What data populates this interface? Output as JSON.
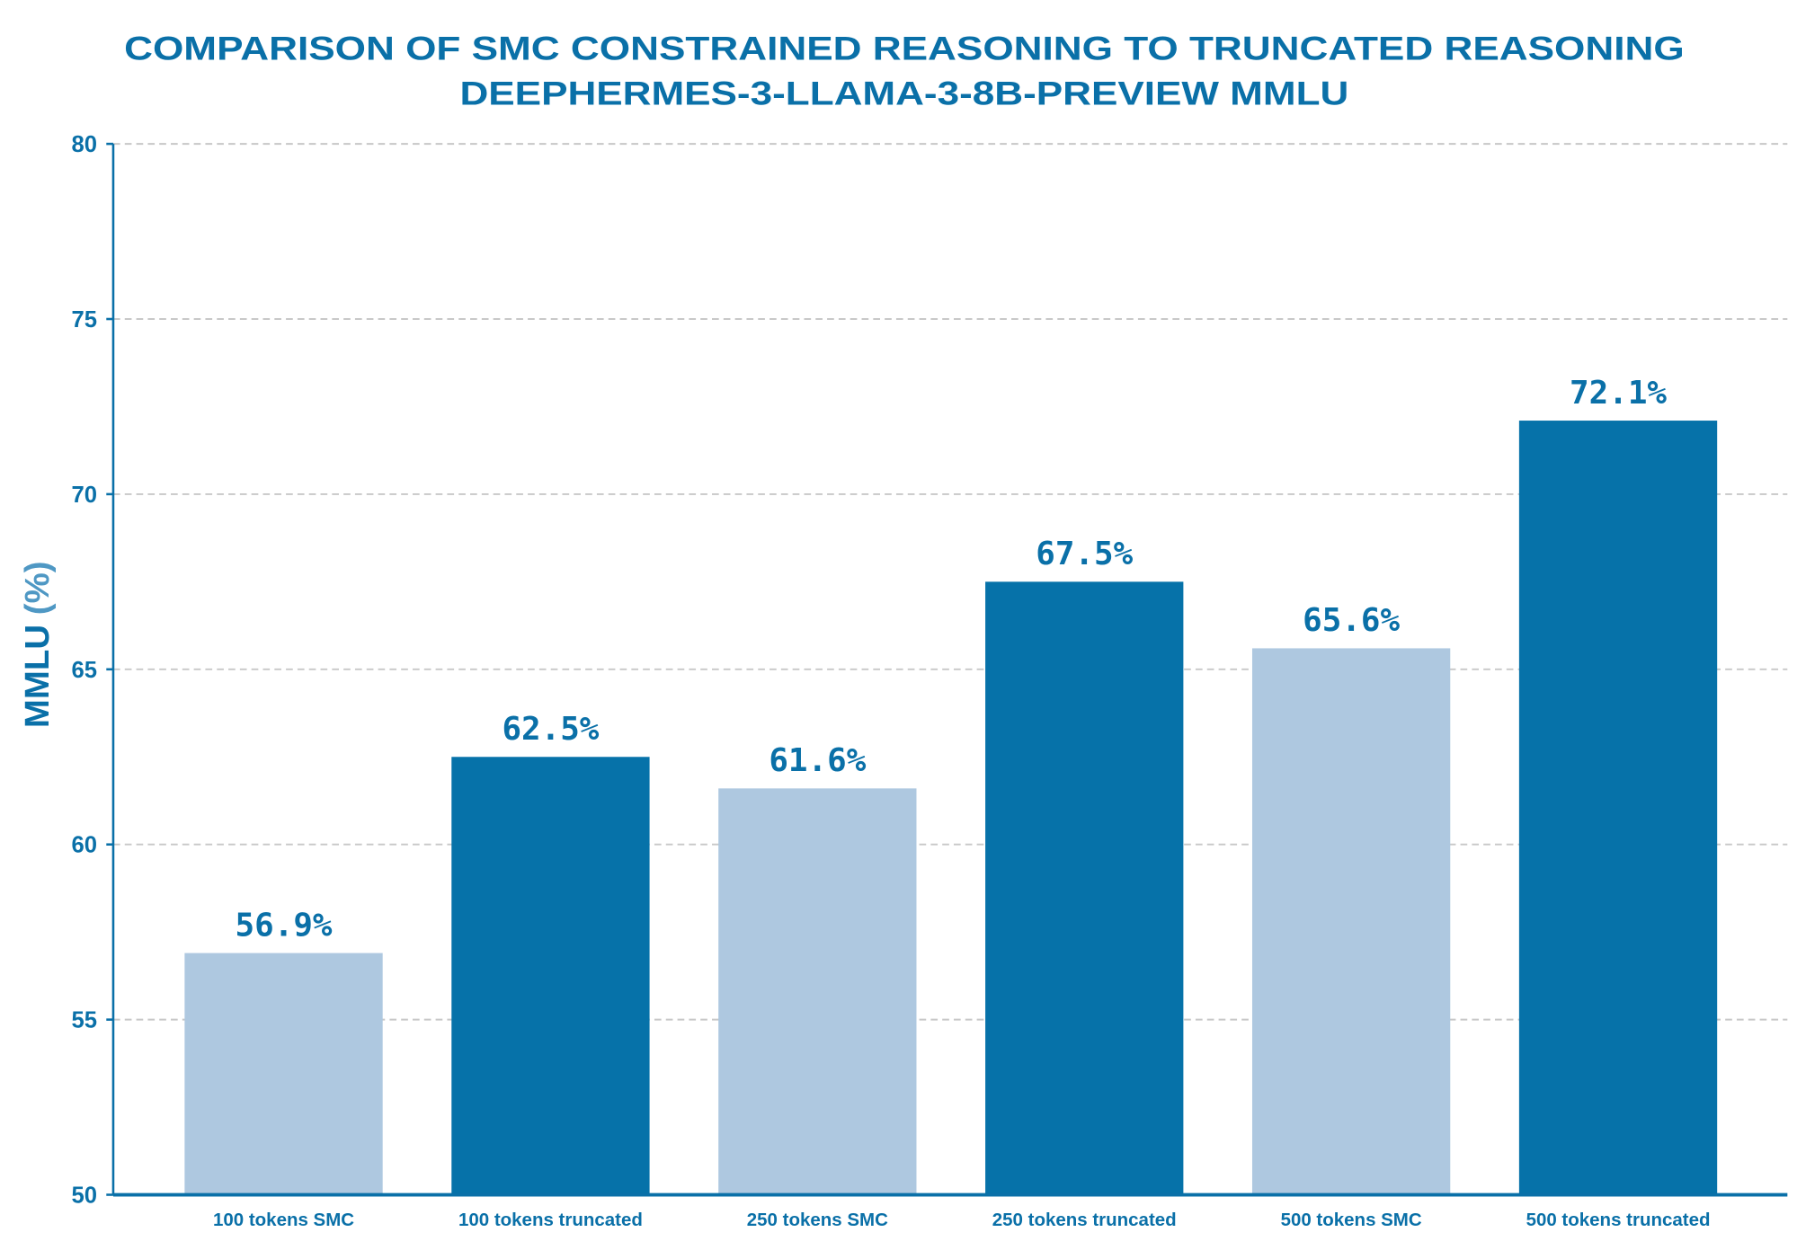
{
  "chart_data": {
    "type": "bar",
    "title": "COMPARISON OF SMC CONSTRAINED REASONING TO TRUNCATED REASONING",
    "subtitle": "DEEPHERMES-3-LLAMA-3-8B-PREVIEW MMLU",
    "xlabel": "",
    "ylabel": "MMLU",
    "ylabel_unit": "(%)",
    "ylim": [
      50,
      80
    ],
    "yticks": [
      50,
      55,
      60,
      65,
      70,
      75,
      80
    ],
    "grid": "y-dashed",
    "categories": [
      "100 tokens SMC",
      "100 tokens truncated",
      "250 tokens SMC",
      "250 tokens truncated",
      "500 tokens SMC",
      "500 tokens truncated"
    ],
    "values": [
      56.9,
      62.5,
      61.6,
      67.5,
      65.6,
      72.1
    ],
    "data_labels": [
      "56.9%",
      "62.5%",
      "61.6%",
      "67.5%",
      "65.6%",
      "72.1%"
    ],
    "colors": [
      "#aec8e0",
      "#0672a9",
      "#aec8e0",
      "#0672a9",
      "#aec8e0",
      "#0672a9"
    ]
  }
}
